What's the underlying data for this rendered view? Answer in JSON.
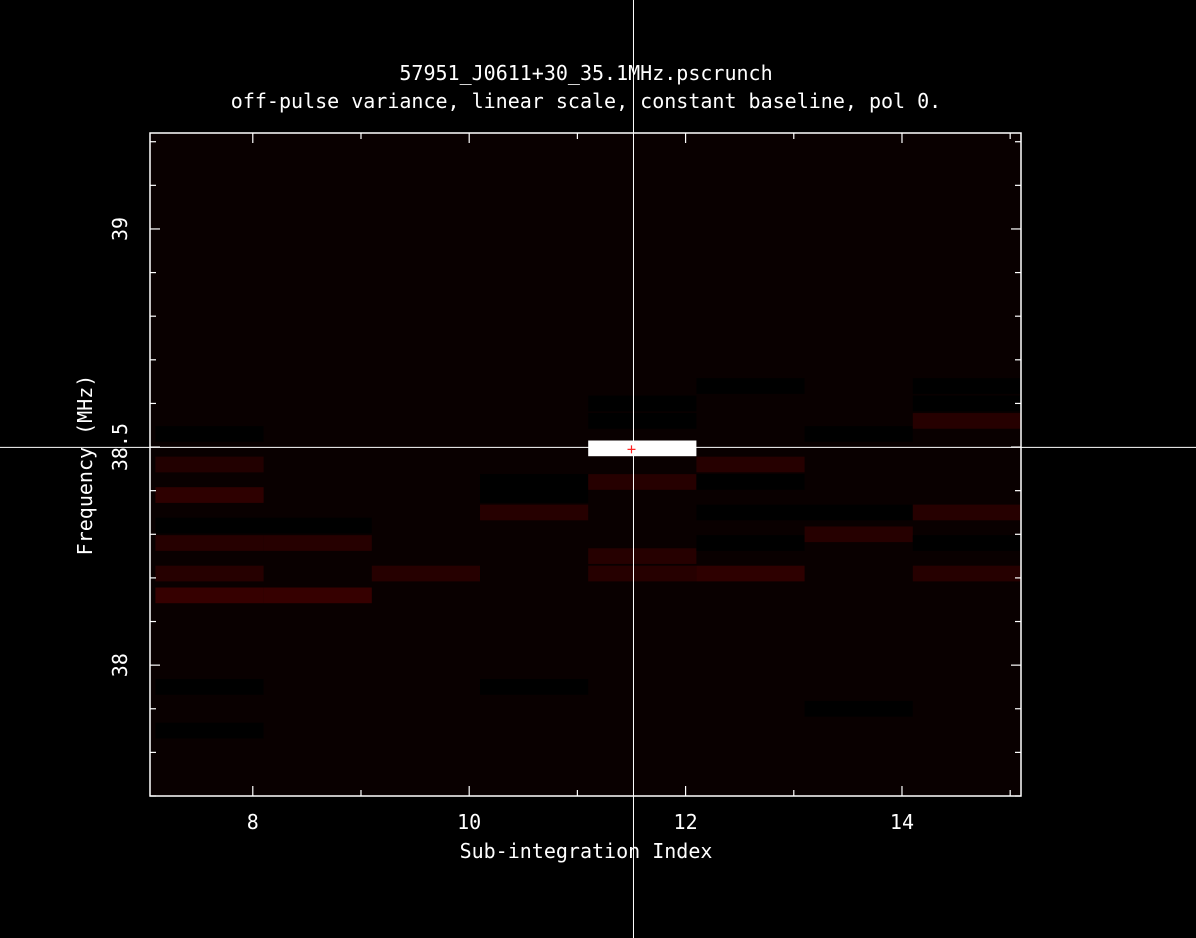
{
  "chart_data": {
    "type": "heatmap",
    "title": "57951_J0611+30_35.1MHz.pscrunch",
    "subtitle": "off-pulse variance, linear scale, constant baseline, pol 0.",
    "xlabel": "Sub-integration Index",
    "ylabel": "Frequency (MHz)",
    "xlim": [
      7.05,
      15.1
    ],
    "ylim": [
      37.7,
      39.22
    ],
    "x_ticks": [
      8,
      10,
      12,
      14
    ],
    "x_tick_labels": [
      "8",
      "10",
      "12",
      "14"
    ],
    "y_ticks": [
      38,
      38.5,
      39
    ],
    "y_tick_labels": [
      "38",
      "38.5",
      "39"
    ],
    "x_minor_step": 1,
    "y_minor_step": 0.1,
    "colormap": "heat (black to white, linear)",
    "background_value": 0.03,
    "cell_width": 1,
    "cell_height": 0.036,
    "cells": [
      {
        "x": 11.6,
        "y": 38.497,
        "v": 1.0
      },
      {
        "x": 7.6,
        "y": 38.53,
        "v": 0.0
      },
      {
        "x": 7.6,
        "y": 38.46,
        "v": 0.045
      },
      {
        "x": 7.6,
        "y": 38.39,
        "v": 0.06
      },
      {
        "x": 7.6,
        "y": 38.32,
        "v": 0.0
      },
      {
        "x": 7.6,
        "y": 38.28,
        "v": 0.05
      },
      {
        "x": 7.6,
        "y": 38.21,
        "v": 0.05
      },
      {
        "x": 7.6,
        "y": 38.16,
        "v": 0.07
      },
      {
        "x": 8.6,
        "y": 38.32,
        "v": 0.0
      },
      {
        "x": 8.6,
        "y": 38.28,
        "v": 0.05
      },
      {
        "x": 8.6,
        "y": 38.16,
        "v": 0.07
      },
      {
        "x": 9.6,
        "y": 38.21,
        "v": 0.05
      },
      {
        "x": 10.6,
        "y": 38.42,
        "v": 0.0
      },
      {
        "x": 10.6,
        "y": 38.39,
        "v": 0.0
      },
      {
        "x": 10.6,
        "y": 38.35,
        "v": 0.05
      },
      {
        "x": 11.6,
        "y": 38.6,
        "v": 0.0
      },
      {
        "x": 11.6,
        "y": 38.56,
        "v": 0.0
      },
      {
        "x": 11.6,
        "y": 38.42,
        "v": 0.05
      },
      {
        "x": 11.6,
        "y": 38.25,
        "v": 0.05
      },
      {
        "x": 11.6,
        "y": 38.21,
        "v": 0.05
      },
      {
        "x": 12.6,
        "y": 38.64,
        "v": 0.0
      },
      {
        "x": 12.6,
        "y": 38.46,
        "v": 0.05
      },
      {
        "x": 12.6,
        "y": 38.42,
        "v": 0.0
      },
      {
        "x": 12.6,
        "y": 38.35,
        "v": 0.0
      },
      {
        "x": 12.6,
        "y": 38.28,
        "v": 0.0
      },
      {
        "x": 12.6,
        "y": 38.21,
        "v": 0.06
      },
      {
        "x": 13.6,
        "y": 38.53,
        "v": 0.0
      },
      {
        "x": 13.6,
        "y": 38.35,
        "v": 0.0
      },
      {
        "x": 13.6,
        "y": 38.3,
        "v": 0.05
      },
      {
        "x": 14.6,
        "y": 38.64,
        "v": 0.0
      },
      {
        "x": 14.6,
        "y": 38.6,
        "v": 0.0
      },
      {
        "x": 14.6,
        "y": 38.56,
        "v": 0.05
      },
      {
        "x": 14.6,
        "y": 38.35,
        "v": 0.05
      },
      {
        "x": 14.6,
        "y": 38.28,
        "v": 0.0
      },
      {
        "x": 14.6,
        "y": 38.21,
        "v": 0.05
      },
      {
        "x": 7.6,
        "y": 37.95,
        "v": 0.0
      },
      {
        "x": 7.6,
        "y": 37.85,
        "v": 0.0
      },
      {
        "x": 10.6,
        "y": 37.95,
        "v": 0.0
      },
      {
        "x": 13.6,
        "y": 37.9,
        "v": 0.0
      }
    ],
    "cursor": {
      "x": 11.5,
      "y": 38.497
    }
  }
}
